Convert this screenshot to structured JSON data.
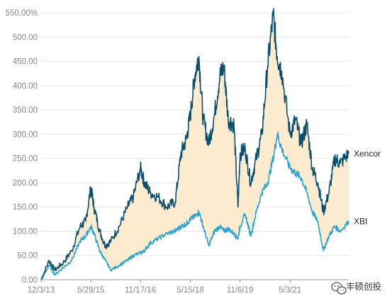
{
  "chart_data": {
    "type": "line",
    "title": "",
    "xlabel": "",
    "ylabel": "",
    "ylim": [
      0,
      550
    ],
    "y_ticks": [
      "0.00",
      "50.00",
      "100.00",
      "150.00",
      "200.00",
      "250.00",
      "300.00",
      "350.00",
      "400.00",
      "450.00",
      "500.00",
      "550.00%"
    ],
    "y_tick_values": [
      0,
      50,
      100,
      150,
      200,
      250,
      300,
      350,
      400,
      450,
      500,
      550
    ],
    "x_ticks": [
      "12/3/13",
      "5/29/15",
      "11/17/16",
      "5/15/18",
      "11/6/19",
      "5/3/21"
    ],
    "x_range": [
      "12/3/13",
      "2/1/23"
    ],
    "grid": "horizontal",
    "fill_between": "#fdebd0",
    "series": [
      {
        "name": "Xencor",
        "color": "#0b4f6c",
        "points": [
          [
            "12/3/13",
            0
          ],
          [
            "3/1/14",
            40
          ],
          [
            "5/1/14",
            20
          ],
          [
            "8/1/14",
            35
          ],
          [
            "11/1/14",
            60
          ],
          [
            "2/1/15",
            110
          ],
          [
            "4/1/15",
            120
          ],
          [
            "5/29/15",
            190
          ],
          [
            "7/1/15",
            150
          ],
          [
            "9/1/15",
            100
          ],
          [
            "11/1/15",
            70
          ],
          [
            "1/1/16",
            80
          ],
          [
            "4/1/16",
            110
          ],
          [
            "7/1/16",
            150
          ],
          [
            "9/1/16",
            170
          ],
          [
            "11/17/16",
            230
          ],
          [
            "1/1/17",
            200
          ],
          [
            "3/1/17",
            180
          ],
          [
            "6/1/17",
            170
          ],
          [
            "9/1/17",
            150
          ],
          [
            "12/1/17",
            160
          ],
          [
            "2/1/18",
            260
          ],
          [
            "4/1/18",
            290
          ],
          [
            "5/15/18",
            340
          ],
          [
            "7/1/18",
            420
          ],
          [
            "8/15/18",
            460
          ],
          [
            "10/1/18",
            330
          ],
          [
            "12/1/18",
            280
          ],
          [
            "2/1/19",
            340
          ],
          [
            "4/1/19",
            420
          ],
          [
            "5/15/19",
            440
          ],
          [
            "7/1/19",
            330
          ],
          [
            "9/1/19",
            320
          ],
          [
            "10/15/19",
            150
          ],
          [
            "11/6/19",
            260
          ],
          [
            "1/1/20",
            270
          ],
          [
            "3/1/20",
            200
          ],
          [
            "5/1/20",
            250
          ],
          [
            "7/1/20",
            300
          ],
          [
            "9/1/20",
            440
          ],
          [
            "11/1/20",
            545
          ],
          [
            "12/15/20",
            460
          ],
          [
            "2/1/21",
            430
          ],
          [
            "5/3/21",
            300
          ],
          [
            "7/1/21",
            330
          ],
          [
            "9/1/21",
            280
          ],
          [
            "11/1/21",
            320
          ],
          [
            "1/1/22",
            230
          ],
          [
            "3/1/22",
            200
          ],
          [
            "5/1/22",
            140
          ],
          [
            "7/1/22",
            180
          ],
          [
            "9/1/22",
            250
          ],
          [
            "11/1/22",
            240
          ],
          [
            "2/1/23",
            260
          ]
        ]
      },
      {
        "name": "XBI",
        "color": "#2aa3cf",
        "points": [
          [
            "12/3/13",
            0
          ],
          [
            "3/1/14",
            30
          ],
          [
            "5/1/14",
            10
          ],
          [
            "8/1/14",
            25
          ],
          [
            "11/1/14",
            40
          ],
          [
            "2/1/15",
            80
          ],
          [
            "4/1/15",
            90
          ],
          [
            "5/29/15",
            110
          ],
          [
            "7/1/15",
            95
          ],
          [
            "9/1/15",
            60
          ],
          [
            "11/1/15",
            40
          ],
          [
            "1/1/16",
            20
          ],
          [
            "4/1/16",
            30
          ],
          [
            "7/1/16",
            40
          ],
          [
            "9/1/16",
            50
          ],
          [
            "11/17/16",
            55
          ],
          [
            "1/1/17",
            60
          ],
          [
            "3/1/17",
            75
          ],
          [
            "6/1/17",
            85
          ],
          [
            "9/1/17",
            95
          ],
          [
            "12/1/17",
            100
          ],
          [
            "2/1/18",
            110
          ],
          [
            "4/1/18",
            115
          ],
          [
            "5/15/18",
            125
          ],
          [
            "7/1/18",
            130
          ],
          [
            "8/15/18",
            140
          ],
          [
            "10/1/18",
            110
          ],
          [
            "12/1/18",
            70
          ],
          [
            "2/1/19",
            100
          ],
          [
            "4/1/19",
            110
          ],
          [
            "5/15/19",
            100
          ],
          [
            "7/1/19",
            105
          ],
          [
            "9/1/19",
            95
          ],
          [
            "10/15/19",
            85
          ],
          [
            "11/6/19",
            110
          ],
          [
            "1/1/20",
            135
          ],
          [
            "3/1/20",
            90
          ],
          [
            "5/1/20",
            140
          ],
          [
            "7/1/20",
            180
          ],
          [
            "9/1/20",
            200
          ],
          [
            "11/1/20",
            250
          ],
          [
            "12/15/20",
            300
          ],
          [
            "2/1/21",
            270
          ],
          [
            "5/3/21",
            230
          ],
          [
            "7/1/21",
            220
          ],
          [
            "9/1/21",
            210
          ],
          [
            "11/1/21",
            180
          ],
          [
            "1/1/22",
            140
          ],
          [
            "3/1/22",
            120
          ],
          [
            "5/1/22",
            60
          ],
          [
            "7/1/22",
            90
          ],
          [
            "9/1/22",
            110
          ],
          [
            "11/1/22",
            100
          ],
          [
            "2/1/23",
            120
          ]
        ]
      }
    ]
  },
  "watermark": {
    "text": "丰硕创投",
    "icon": "wechat-icon"
  }
}
